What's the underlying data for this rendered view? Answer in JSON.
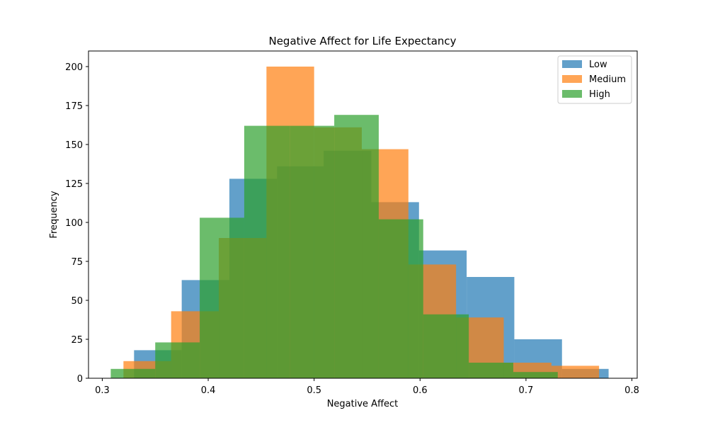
{
  "chart_data": {
    "type": "bar",
    "title": "Negative Affect for Life Expectancy",
    "xlabel": "Negative Affect",
    "ylabel": "Frequency",
    "xlim": [
      0.287,
      0.805
    ],
    "ylim": [
      0,
      210
    ],
    "xticks": [
      0.3,
      0.4,
      0.5,
      0.6,
      0.7,
      0.8
    ],
    "yticks": [
      0,
      25,
      50,
      75,
      100,
      125,
      150,
      175,
      200
    ],
    "grid": false,
    "legend_position": "top-right",
    "series": [
      {
        "name": "Low",
        "color": "#1f77b4",
        "bins": [
          {
            "x0": 0.33,
            "x1": 0.375,
            "y": 18
          },
          {
            "x0": 0.375,
            "x1": 0.42,
            "y": 63
          },
          {
            "x0": 0.42,
            "x1": 0.465,
            "y": 128
          },
          {
            "x0": 0.465,
            "x1": 0.509,
            "y": 136
          },
          {
            "x0": 0.509,
            "x1": 0.554,
            "y": 146
          },
          {
            "x0": 0.554,
            "x1": 0.599,
            "y": 113
          },
          {
            "x0": 0.599,
            "x1": 0.644,
            "y": 82
          },
          {
            "x0": 0.644,
            "x1": 0.689,
            "y": 65
          },
          {
            "x0": 0.689,
            "x1": 0.734,
            "y": 25
          },
          {
            "x0": 0.734,
            "x1": 0.778,
            "y": 6
          }
        ]
      },
      {
        "name": "Medium",
        "color": "#ff7f0e",
        "bins": [
          {
            "x0": 0.32,
            "x1": 0.365,
            "y": 11
          },
          {
            "x0": 0.365,
            "x1": 0.41,
            "y": 43
          },
          {
            "x0": 0.41,
            "x1": 0.455,
            "y": 90
          },
          {
            "x0": 0.455,
            "x1": 0.5,
            "y": 200
          },
          {
            "x0": 0.5,
            "x1": 0.545,
            "y": 161
          },
          {
            "x0": 0.545,
            "x1": 0.589,
            "y": 147
          },
          {
            "x0": 0.589,
            "x1": 0.634,
            "y": 73
          },
          {
            "x0": 0.634,
            "x1": 0.679,
            "y": 39
          },
          {
            "x0": 0.679,
            "x1": 0.724,
            "y": 10
          },
          {
            "x0": 0.724,
            "x1": 0.769,
            "y": 8
          }
        ]
      },
      {
        "name": "High",
        "color": "#2ca02c",
        "bins": [
          {
            "x0": 0.308,
            "x1": 0.35,
            "y": 6
          },
          {
            "x0": 0.35,
            "x1": 0.392,
            "y": 23
          },
          {
            "x0": 0.392,
            "x1": 0.434,
            "y": 103
          },
          {
            "x0": 0.434,
            "x1": 0.477,
            "y": 162
          },
          {
            "x0": 0.477,
            "x1": 0.519,
            "y": 162
          },
          {
            "x0": 0.519,
            "x1": 0.561,
            "y": 169
          },
          {
            "x0": 0.561,
            "x1": 0.603,
            "y": 102
          },
          {
            "x0": 0.603,
            "x1": 0.646,
            "y": 41
          },
          {
            "x0": 0.646,
            "x1": 0.688,
            "y": 10
          },
          {
            "x0": 0.688,
            "x1": 0.73,
            "y": 4
          }
        ]
      }
    ]
  }
}
